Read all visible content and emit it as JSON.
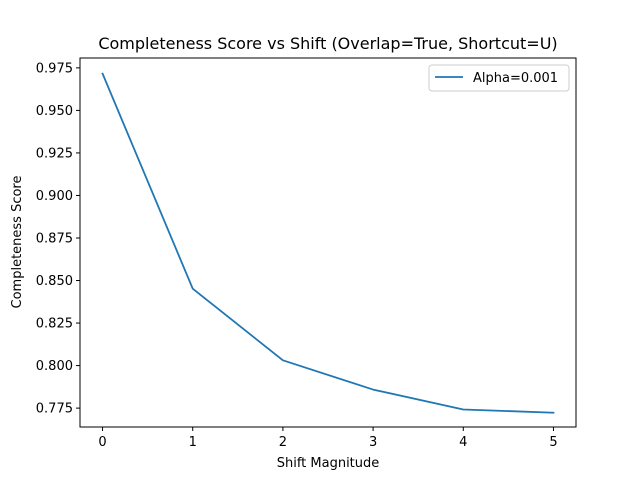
{
  "chart_data": {
    "type": "line",
    "title": "Completeness Score vs Shift (Overlap=True, Shortcut=U)",
    "xlabel": "Shift Magnitude",
    "ylabel": "Completeness Score",
    "x": [
      0,
      1,
      2,
      3,
      4,
      5
    ],
    "xticks": [
      "0",
      "1",
      "2",
      "3",
      "4",
      "5"
    ],
    "yticks": [
      "0.775",
      "0.800",
      "0.825",
      "0.850",
      "0.875",
      "0.900",
      "0.925",
      "0.950",
      "0.975"
    ],
    "xlim": [
      -0.25,
      5.25
    ],
    "ylim": [
      0.7639,
      0.9808
    ],
    "grid": false,
    "legend_position": "upper right",
    "series": [
      {
        "name": "Alpha=0.001",
        "color": "#1f77b4",
        "values": [
          0.9716,
          0.8452,
          0.8031,
          0.7859,
          0.7742,
          0.7723
        ]
      }
    ]
  }
}
